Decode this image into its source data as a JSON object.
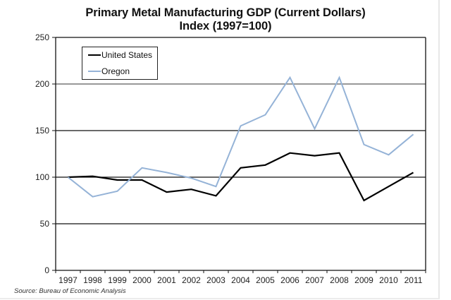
{
  "chart_data": {
    "type": "line",
    "title": "Primary Metal Manufacturing GDP (Current Dollars)",
    "subtitle": "Index (1997=100)",
    "xlabel": "",
    "ylabel": "",
    "x": [
      "1997",
      "1998",
      "1999",
      "2000",
      "2001",
      "2002",
      "2003",
      "2004",
      "2005",
      "2006",
      "2007",
      "2008",
      "2009",
      "2010",
      "2011"
    ],
    "ylim": [
      0,
      250
    ],
    "yticks": [
      0,
      50,
      100,
      150,
      200,
      250
    ],
    "grid": "horizontal",
    "legend_position": "top-left",
    "series": [
      {
        "name": "United States",
        "color": "#000000",
        "values": [
          100,
          101,
          97,
          97,
          84,
          87,
          80,
          110,
          113,
          126,
          123,
          126,
          75,
          90,
          105
        ]
      },
      {
        "name": "Oregon",
        "color": "#95b3d7",
        "values": [
          100,
          79,
          85,
          110,
          105,
          99,
          90,
          155,
          167,
          207,
          152,
          207,
          135,
          124,
          146
        ]
      }
    ],
    "source": "Source: Bureau of Economic Analysis"
  }
}
